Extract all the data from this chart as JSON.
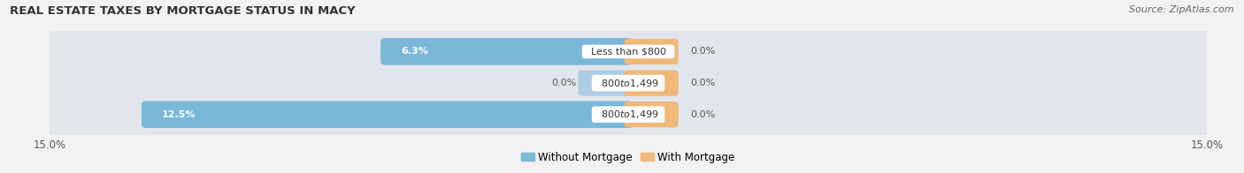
{
  "title": "REAL ESTATE TAXES BY MORTGAGE STATUS IN MACY",
  "source": "Source: ZipAtlas.com",
  "categories": [
    "Less than $800",
    "$800 to $1,499",
    "$800 to $1,499"
  ],
  "without_mortgage": [
    6.3,
    0.0,
    12.5
  ],
  "with_mortgage": [
    0.0,
    0.0,
    0.0
  ],
  "xlim": [
    -15.0,
    15.0
  ],
  "bar_color_without": "#7ab8d9",
  "bar_color_with": "#f0b97a",
  "label_without": "Without Mortgage",
  "label_with": "With Mortgage",
  "title_fontsize": 9.5,
  "source_fontsize": 8,
  "background_color": "#f2f2f2",
  "row_bg_color": "#e2e6ec",
  "axis_tick_label_size": 8.5,
  "legend_fontsize": 8.5,
  "with_mortgage_stub": 1.2,
  "without_mortgage_stub": 1.2
}
